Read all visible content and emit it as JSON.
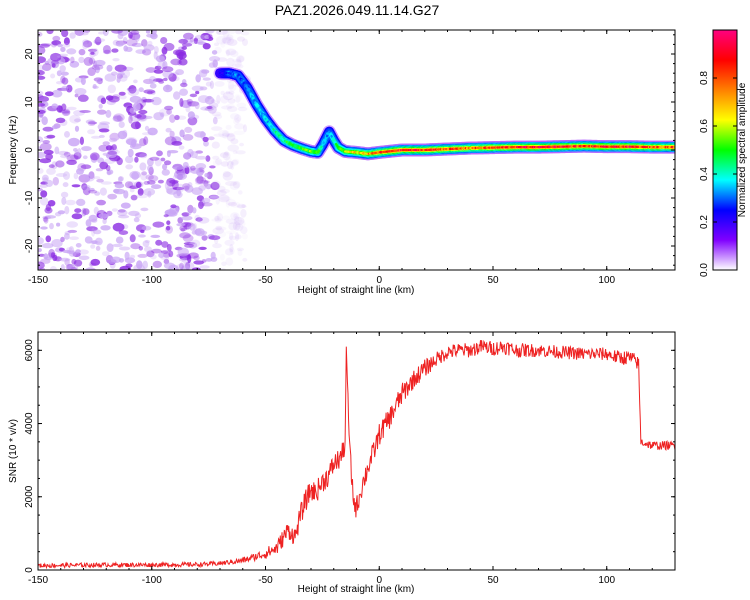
{
  "figure_title": "PAZ1.2026.049.11.14.G27",
  "chart_data": [
    {
      "type": "heatmap",
      "title": "PAZ1.2026.049.11.14.G27",
      "xlabel": "Height of straight line (km)",
      "ylabel": "Frequency (Hz)",
      "xlim": [
        -150,
        130
      ],
      "ylim": [
        -25,
        25
      ],
      "xticks": [
        "-150",
        "-100",
        "-50",
        "0",
        "50",
        "100"
      ],
      "xtick_values": [
        -150,
        -100,
        -50,
        0,
        50,
        100
      ],
      "yticks": [
        "-20",
        "-10",
        "0",
        "10",
        "20"
      ],
      "ytick_values": [
        -20,
        -10,
        0,
        10,
        20
      ],
      "noise_region_x": [
        -150,
        -72
      ],
      "ridge": {
        "x": [
          -70,
          -66,
          -62,
          -58,
          -54,
          -50,
          -46,
          -42,
          -38,
          -34,
          -30,
          -27,
          -25,
          -22,
          -20,
          -18,
          -15,
          -10,
          -5,
          0,
          10,
          20,
          30,
          40,
          50,
          60,
          70,
          80,
          90,
          100,
          110,
          120,
          130
        ],
        "y": [
          16,
          16,
          15.5,
          13,
          9.5,
          6.5,
          4,
          2,
          1,
          0.3,
          -0.3,
          -0.5,
          1,
          3.8,
          2,
          0.5,
          -0.3,
          -0.5,
          -0.8,
          -0.5,
          0,
          0,
          0.2,
          0.4,
          0.5,
          0.6,
          0.6,
          0.7,
          0.8,
          0.7,
          0.7,
          0.6,
          0.6
        ],
        "amplitude": [
          0.2,
          0.3,
          0.3,
          0.3,
          0.35,
          0.35,
          0.4,
          0.45,
          0.5,
          0.5,
          0.55,
          0.5,
          0.35,
          0.3,
          0.4,
          0.5,
          0.6,
          0.65,
          0.7,
          0.8,
          0.85,
          0.85,
          0.8,
          0.75,
          0.8,
          0.85,
          0.9,
          0.9,
          0.8,
          0.85,
          0.85,
          0.8,
          0.8
        ]
      },
      "colorbar": {
        "label": "Normalized spectral amplitude",
        "range": [
          0,
          1
        ],
        "ticks": [
          "0.0",
          "0.2",
          "0.4",
          "0.6",
          "0.8"
        ],
        "tick_values": [
          0,
          0.2,
          0.4,
          0.6,
          0.8
        ],
        "colors": [
          "#ffffff",
          "#8000ff",
          "#0000ff",
          "#00ffff",
          "#00ff00",
          "#ffff00",
          "#ff8000",
          "#ff0000",
          "#ff0080"
        ]
      }
    },
    {
      "type": "line",
      "xlabel": "Height of straight line (km)",
      "ylabel": "SNR (10 * v/v)",
      "xlim": [
        -150,
        130
      ],
      "ylim": [
        0,
        6500
      ],
      "xticks": [
        "-150",
        "-100",
        "-50",
        "0",
        "50",
        "100"
      ],
      "xtick_values": [
        -150,
        -100,
        -50,
        0,
        50,
        100
      ],
      "yticks": [
        "0",
        "2000",
        "4000",
        "6000"
      ],
      "ytick_values": [
        0,
        2000,
        4000,
        6000
      ],
      "color": "#ee2222",
      "series": [
        {
          "name": "SNR",
          "x": [
            -150,
            -120,
            -100,
            -80,
            -70,
            -60,
            -55,
            -50,
            -45,
            -42,
            -40,
            -37,
            -35,
            -33,
            -30,
            -28,
            -25,
            -22,
            -20,
            -18,
            -16,
            -15,
            -14.5,
            -13,
            -12,
            -11,
            -10,
            -8,
            -5,
            -2,
            0,
            5,
            10,
            15,
            20,
            25,
            30,
            35,
            40,
            45,
            50,
            55,
            60,
            70,
            80,
            90,
            100,
            105,
            110,
            113,
            114,
            115,
            120,
            125,
            130
          ],
          "y": [
            120,
            140,
            140,
            150,
            180,
            260,
            350,
            450,
            600,
            900,
            1100,
            900,
            1400,
            1800,
            2200,
            2100,
            2400,
            2600,
            2900,
            3000,
            3200,
            3500,
            6100,
            3300,
            2400,
            1800,
            1700,
            2200,
            2800,
            3300,
            3700,
            4200,
            4800,
            5200,
            5500,
            5750,
            5950,
            6000,
            6000,
            6100,
            6050,
            6100,
            6000,
            6000,
            5950,
            5900,
            5900,
            5800,
            5800,
            5700,
            5600,
            3500,
            3400,
            3400,
            3400
          ],
          "noise_amplitude": [
            60,
            60,
            60,
            60,
            60,
            80,
            100,
            150,
            200,
            250,
            250,
            250,
            300,
            300,
            300,
            300,
            300,
            300,
            300,
            300,
            300,
            300,
            0,
            300,
            300,
            300,
            300,
            300,
            300,
            300,
            300,
            300,
            300,
            250,
            250,
            200,
            200,
            200,
            200,
            200,
            200,
            200,
            200,
            180,
            180,
            180,
            180,
            200,
            200,
            200,
            200,
            120,
            120,
            120,
            120
          ]
        }
      ]
    }
  ]
}
